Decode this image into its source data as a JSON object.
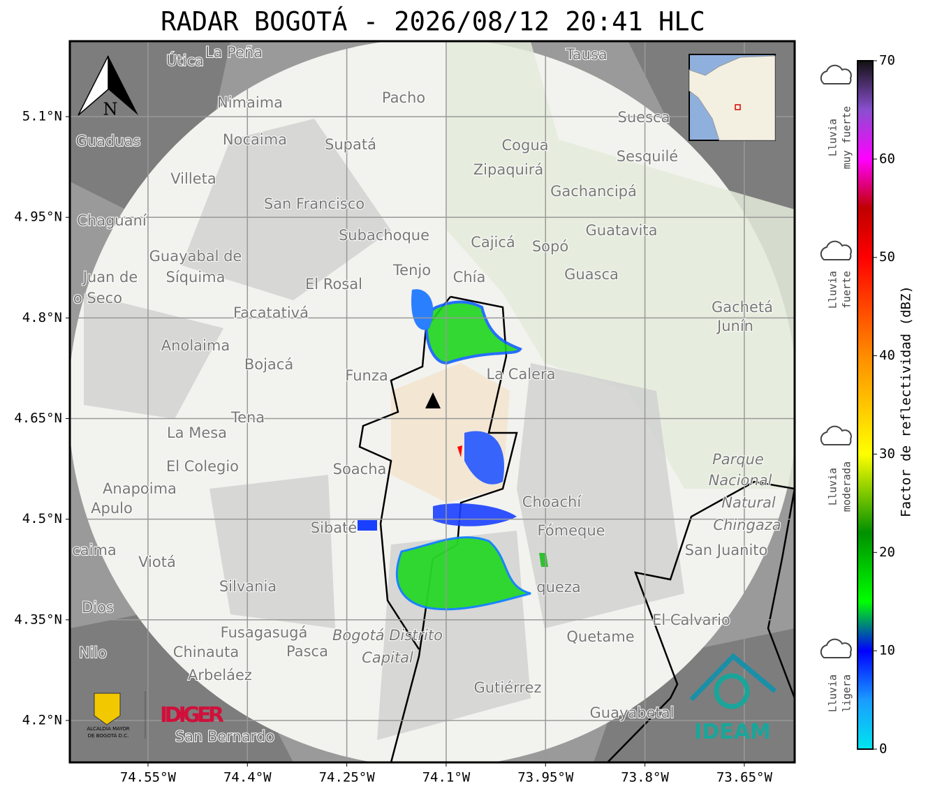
{
  "header": {
    "title": "RADAR BOGOTÁ - 2026/08/12 20:41 HLC"
  },
  "map": {
    "xlim": [
      -74.668,
      -73.574
    ],
    "ylim": [
      4.1375,
      5.2125
    ],
    "xticks": [
      {
        "value": -74.55,
        "label": "74.55°W"
      },
      {
        "value": -74.4,
        "label": "74.4°W"
      },
      {
        "value": -74.25,
        "label": "74.25°W"
      },
      {
        "value": -74.1,
        "label": "74.1°W"
      },
      {
        "value": -73.95,
        "label": "73.95°W"
      },
      {
        "value": -73.8,
        "label": "73.8°W"
      },
      {
        "value": -73.65,
        "label": "73.65°W"
      }
    ],
    "yticks": [
      {
        "value": 5.1,
        "label": "5.1°N"
      },
      {
        "value": 4.95,
        "label": "4.95°N"
      },
      {
        "value": 4.8,
        "label": "4.8°N"
      },
      {
        "value": 4.65,
        "label": "4.65°N"
      },
      {
        "value": 4.5,
        "label": "4.5°N"
      },
      {
        "value": 4.35,
        "label": "4.35°N"
      },
      {
        "value": 4.2,
        "label": "4.2°N"
      }
    ],
    "grid": true,
    "north": "N",
    "places": [
      "La Peña",
      "Útica",
      "Tausa",
      "Pacho",
      "Nimaima",
      "Guaduas",
      "Nocaima",
      "Supatá",
      "Suesca",
      "Cogua",
      "Sesquilé",
      "Zipaquirá",
      "Villeta",
      "Gachancipá",
      "San Francisco",
      "Chaguaní",
      "Guatavita",
      "Subachoque",
      "Cajicá",
      "Sopó",
      "Guayabal de",
      "Síquima",
      "Tenjo",
      "Chía",
      "Guasca",
      "Juan de",
      "o Seco",
      "El Rosal",
      "Gachetá",
      "Facatativá",
      "Junín",
      "Anolaima",
      "Bojacá",
      "Funza",
      "La Calera",
      "Tena",
      "La Mesa",
      "El Colegio",
      "Soacha",
      "Parque",
      "Nacional",
      "Natural",
      "Chingaza",
      "Anapoima",
      "Apulo",
      "Choachí",
      "Sibaté",
      "Fómeque",
      "San Juanito",
      "caima",
      "Viotá",
      "Silvania",
      "queza",
      "Dios",
      "El Calvario",
      "Fusagasugá",
      "Bogotá Distrito",
      "Capital",
      "Quetame",
      "Pasca",
      "Nilo",
      "Chinauta",
      "Arbeláez",
      "Gutiérrez",
      "Guayabetal",
      "San Bernardo"
    ]
  },
  "logos": {
    "alcaldia": "ALCALDÍA MAYOR",
    "alcaldia2": "DE BOGOTÁ D.C.",
    "idiger": "IDIGER",
    "ideam": "IDEAM"
  },
  "colorbar": {
    "label": "Factor de reflectividad (dBZ)",
    "lim": [
      0,
      70
    ],
    "ticks": [
      0,
      10,
      20,
      30,
      40,
      50,
      60,
      70
    ],
    "colorscale": [
      [
        0,
        "#00e5ee"
      ],
      [
        5,
        "#1a9cff"
      ],
      [
        10,
        "#0000ff"
      ],
      [
        15,
        "#00ff00"
      ],
      [
        22,
        "#009000"
      ],
      [
        30,
        "#ffff00"
      ],
      [
        40,
        "#ff8c00"
      ],
      [
        50,
        "#ff0000"
      ],
      [
        55,
        "#c00000"
      ],
      [
        60,
        "#ff00ff"
      ],
      [
        65,
        "#8a4fd0"
      ],
      [
        70,
        "#111111"
      ]
    ],
    "rain_labels": [
      [
        "Lluvia",
        "muy fuerte"
      ],
      [
        "Lluvia",
        "fuerte"
      ],
      [
        "Lluvia",
        "moderada"
      ],
      [
        "Lluvia",
        "ligera"
      ]
    ]
  }
}
